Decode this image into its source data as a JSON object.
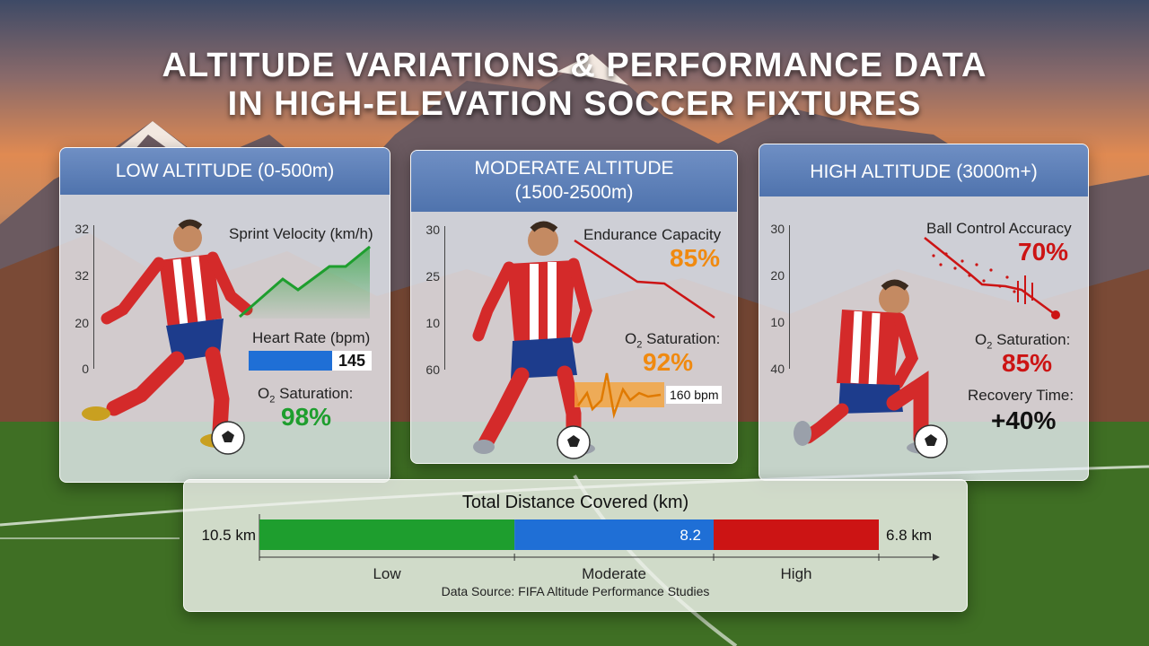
{
  "title_line1": "ALTITUDE VARIATIONS & PERFORMANCE DATA",
  "title_line2": "IN HIGH-ELEVATION SOCCER FIXTURES",
  "panels": [
    {
      "header": "LOW ALTITUDE (0-500m)",
      "ticks": [
        "32",
        "32",
        "20",
        "0"
      ],
      "metric_label": "Sprint Velocity (km/h)",
      "heart_rate_label": "Heart Rate (bpm)",
      "heart_rate_value": "145",
      "o2_label_prefix": "O",
      "o2_label_sub": "2",
      "o2_label_suffix": " Saturation:",
      "o2_value": "98%"
    },
    {
      "header_line1": "MODERATE ALTITUDE",
      "header_line2": "(1500-2500m)",
      "ticks": [
        "30",
        "25",
        "10",
        "60"
      ],
      "metric_label": "Endurance Capacity",
      "metric_value": "85%",
      "o2_label_prefix": "O",
      "o2_label_sub": "2",
      "o2_label_suffix": " Saturation:",
      "o2_value": "92%",
      "bpm_label": "160 bpm"
    },
    {
      "header": "HIGH ALTITUDE (3000m+)",
      "ticks": [
        "30",
        "20",
        "10",
        "40"
      ],
      "metric_label": "Ball Control Accuracy",
      "metric_value": "70%",
      "o2_label_prefix": "O",
      "o2_label_sub": "2",
      "o2_label_suffix": " Saturation:",
      "o2_value": "85%",
      "recovery_label": "Recovery Time:",
      "recovery_value": "+40%"
    }
  ],
  "colors": {
    "green": "#1e9e2e",
    "blue": "#1f6fd6",
    "red": "#cc1414",
    "orange": "#f08a10"
  },
  "icons": [
    "player-sprinting",
    "player-dribbling",
    "player-kneeling",
    "soccer-ball"
  ],
  "chart_data": {
    "type": "bar",
    "title": "Total Distance Covered (km)",
    "categories": [
      "Low",
      "Moderate",
      "High"
    ],
    "series": [
      {
        "values": [
          10.5,
          8.2,
          6.8
        ]
      }
    ],
    "labels": [
      "10.5 km",
      "8.2",
      "6.8 km"
    ],
    "colors": [
      "#1e9e2e",
      "#1f6fd6",
      "#cc1414"
    ],
    "source": "Data Source: FIFA Altitude Performance Studies"
  }
}
